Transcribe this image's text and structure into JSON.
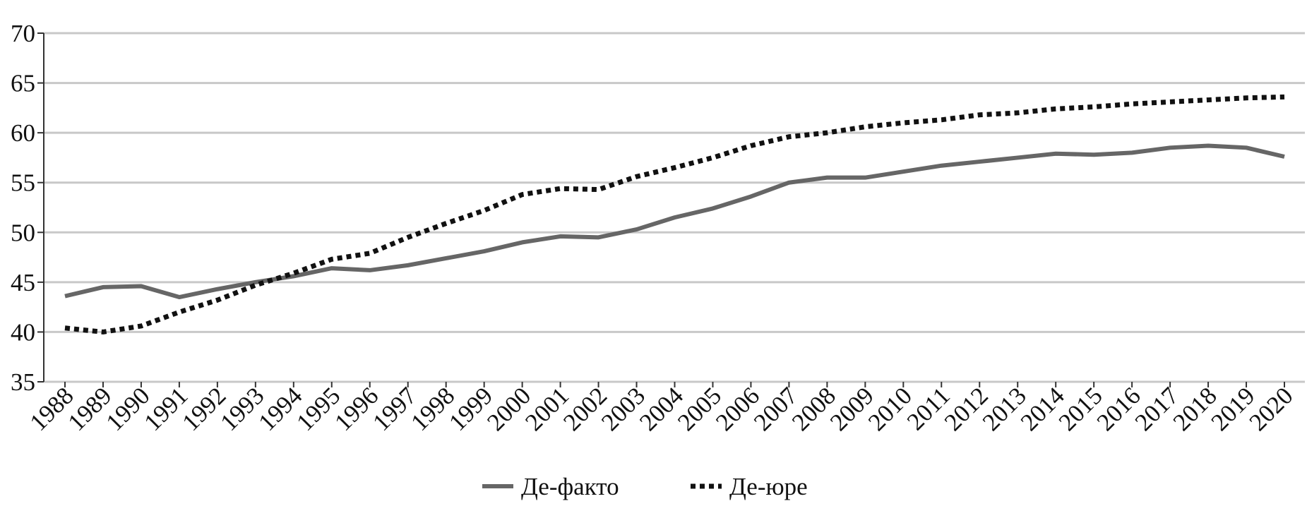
{
  "chart_data": {
    "type": "line",
    "categories": [
      "1988",
      "1989",
      "1990",
      "1991",
      "1992",
      "1993",
      "1994",
      "1995",
      "1996",
      "1997",
      "1998",
      "1999",
      "2000",
      "2001",
      "2002",
      "2003",
      "2004",
      "2005",
      "2006",
      "2007",
      "2008",
      "2009",
      "2010",
      "2011",
      "2012",
      "2013",
      "2014",
      "2015",
      "2016",
      "2017",
      "2018",
      "2019",
      "2020"
    ],
    "series": [
      {
        "name": "Де-факто",
        "color": "#666666",
        "style": "solid",
        "values": [
          43.6,
          44.5,
          44.6,
          43.5,
          44.3,
          45.0,
          45.6,
          46.4,
          46.2,
          46.7,
          47.4,
          48.1,
          49.0,
          49.6,
          49.5,
          50.3,
          51.5,
          52.4,
          53.6,
          55.0,
          55.5,
          55.5,
          56.1,
          56.7,
          57.1,
          57.5,
          57.9,
          57.8,
          58.0,
          58.5,
          58.7,
          58.5,
          57.6
        ]
      },
      {
        "name": "Де-юре",
        "color": "#111111",
        "style": "dotted",
        "values": [
          40.4,
          40.0,
          40.6,
          42.0,
          43.2,
          44.7,
          45.9,
          47.3,
          47.9,
          49.5,
          50.9,
          52.2,
          53.8,
          54.4,
          54.3,
          55.6,
          56.5,
          57.5,
          58.7,
          59.6,
          60.0,
          60.6,
          61.0,
          61.3,
          61.8,
          62.0,
          62.4,
          62.6,
          62.9,
          63.1,
          63.3,
          63.5,
          63.6
        ]
      }
    ],
    "ylim": [
      35,
      70
    ],
    "yticks": [
      35,
      40,
      45,
      50,
      55,
      60,
      65,
      70
    ],
    "grid": true,
    "legend": "bottom"
  }
}
